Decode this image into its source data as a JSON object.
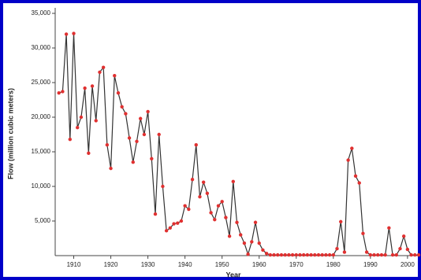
{
  "chart_data": {
    "type": "line",
    "x_label": "Year",
    "y_label": "Flow (million cubic meters)",
    "x": [
      1906,
      1907,
      1908,
      1909,
      1910,
      1911,
      1912,
      1913,
      1914,
      1915,
      1916,
      1917,
      1918,
      1919,
      1920,
      1921,
      1922,
      1923,
      1924,
      1925,
      1926,
      1927,
      1928,
      1929,
      1930,
      1931,
      1932,
      1933,
      1934,
      1935,
      1936,
      1937,
      1938,
      1939,
      1940,
      1941,
      1942,
      1943,
      1944,
      1945,
      1946,
      1947,
      1948,
      1949,
      1950,
      1951,
      1952,
      1953,
      1954,
      1955,
      1956,
      1957,
      1958,
      1959,
      1960,
      1961,
      1962,
      1963,
      1964,
      1965,
      1966,
      1967,
      1968,
      1969,
      1970,
      1971,
      1972,
      1973,
      1974,
      1975,
      1976,
      1977,
      1978,
      1979,
      1980,
      1981,
      1982,
      1983,
      1984,
      1985,
      1986,
      1987,
      1988,
      1989,
      1990,
      1991,
      1992,
      1993,
      1994,
      1995,
      1996,
      1997,
      1998,
      1999,
      2000,
      2001,
      2002,
      2003
    ],
    "series": [
      {
        "color": "#333333",
        "marker_color": "#e03030",
        "values": [
          23500,
          23700,
          32000,
          16800,
          32100,
          18500,
          20000,
          24200,
          14800,
          24500,
          19500,
          26500,
          27200,
          16000,
          12600,
          26000,
          23500,
          21500,
          20500,
          17000,
          13500,
          16500,
          19800,
          17500,
          20800,
          14000,
          6000,
          17500,
          10000,
          3600,
          4000,
          4600,
          4700,
          5000,
          7200,
          6700,
          11000,
          16000,
          8500,
          10600,
          9000,
          6200,
          5200,
          7200,
          7800,
          5500,
          2800,
          10700,
          4800,
          3000,
          1800,
          200,
          2000,
          4800,
          1800,
          800,
          300,
          100,
          100,
          100,
          100,
          100,
          100,
          100,
          100,
          100,
          100,
          100,
          100,
          100,
          100,
          100,
          100,
          100,
          100,
          1000,
          4900,
          500,
          13800,
          15500,
          11500,
          10500,
          3200,
          500,
          100,
          100,
          100,
          100,
          100,
          4000,
          100,
          100,
          1000,
          2800,
          900,
          100,
          100,
          100
        ]
      }
    ],
    "xlim": [
      1905,
      2003
    ],
    "xticks": [
      1910,
      1920,
      1930,
      1940,
      1950,
      1960,
      1970,
      1980,
      1990,
      2000
    ],
    "ylim": [
      0,
      35000
    ],
    "yticks": [
      {
        "value": 5000,
        "label": "5,000"
      },
      {
        "value": 10000,
        "label": "10,000"
      },
      {
        "value": 15000,
        "label": "15,000"
      },
      {
        "value": 20000,
        "label": "20,000"
      },
      {
        "value": 25000,
        "label": "25,000"
      },
      {
        "value": 30000,
        "label": "30,000"
      },
      {
        "value": 35000,
        "label": "35,000"
      }
    ]
  }
}
